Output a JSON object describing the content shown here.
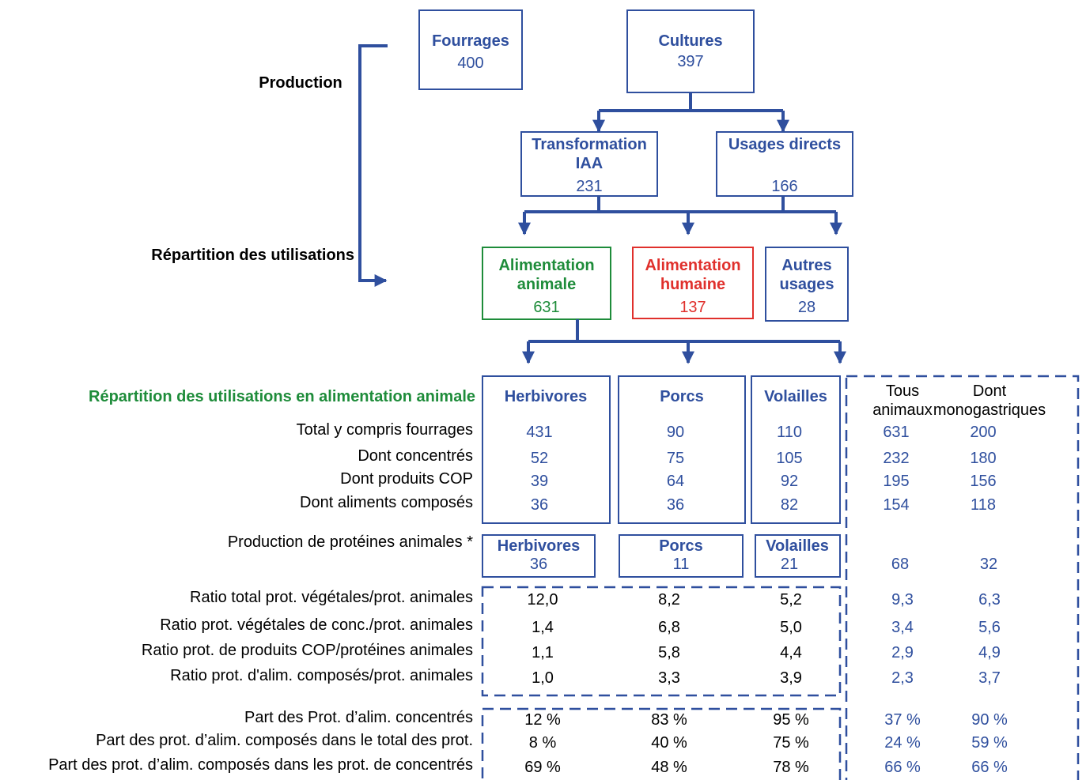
{
  "flow": {
    "production_label": "Production",
    "repartition_label": "Répartition des utilisations",
    "nodes": [
      {
        "title": "Fourrages",
        "value": "400"
      },
      {
        "title": "Cultures",
        "value": "397"
      },
      {
        "title": "Transformation IAA",
        "value": "231"
      },
      {
        "title": "Usages directs",
        "value": "166"
      },
      {
        "title": "Alimentation animale",
        "value": "631"
      },
      {
        "title": "Alimentation humaine",
        "value": "137"
      },
      {
        "title": "Autres usages",
        "value": "28"
      }
    ]
  },
  "table": {
    "heading": "Répartition des utilisations en alimentation animale",
    "columns": [
      "Herbivores",
      "Porcs",
      "Volailles",
      "Tous animaux",
      "Dont monogastriques"
    ],
    "usage_rows": [
      {
        "label": "Total y compris fourrages",
        "values": [
          "431",
          "90",
          "110",
          "631",
          "200"
        ]
      },
      {
        "label": "Dont concentrés",
        "values": [
          "52",
          "75",
          "105",
          "232",
          "180"
        ]
      },
      {
        "label": "Dont produits COP",
        "values": [
          "39",
          "64",
          "92",
          "195",
          "156"
        ]
      },
      {
        "label": "Dont aliments composés",
        "values": [
          "36",
          "36",
          "82",
          "154",
          "118"
        ]
      }
    ],
    "protein": {
      "label": "Production de protéines animales *",
      "columns": [
        "Herbivores",
        "Porcs",
        "Volailles"
      ],
      "values": [
        "36",
        "11",
        "21",
        "68",
        "32"
      ]
    },
    "ratio_rows": [
      {
        "label": "Ratio total prot. végétales/prot. animales",
        "values": [
          "12,0",
          "8,2",
          "5,2",
          "9,3",
          "6,3"
        ]
      },
      {
        "label": "Ratio prot. végétales de conc./prot. animales",
        "values": [
          "1,4",
          "6,8",
          "5,0",
          "3,4",
          "5,6"
        ]
      },
      {
        "label": "Ratio prot. de produits COP/protéines animales",
        "values": [
          "1,1",
          "5,8",
          "4,4",
          "2,9",
          "4,9"
        ]
      },
      {
        "label": "Ratio prot. d'alim. composés/prot. animales",
        "values": [
          "1,0",
          "3,3",
          "3,9",
          "2,3",
          "3,7"
        ]
      }
    ],
    "share_rows": [
      {
        "label": "Part des Prot. d’alim. concentrés",
        "values": [
          "12 %",
          "83 %",
          "95 %",
          "37 %",
          "90 %"
        ]
      },
      {
        "label": "Part des prot. d’alim. composés dans le total des prot.",
        "values": [
          "8 %",
          "40 %",
          "75 %",
          "24 %",
          "59 %"
        ]
      },
      {
        "label": "Part des prot. d’alim. composés dans les prot. de concentrés",
        "values": [
          "69 %",
          "48 %",
          "78 %",
          "66 %",
          "66 %"
        ]
      }
    ]
  }
}
